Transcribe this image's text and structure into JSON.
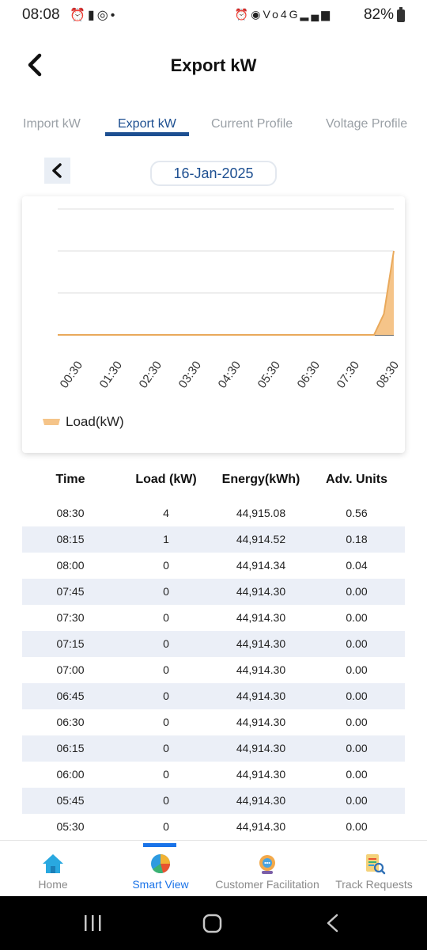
{
  "status_bar": {
    "time": "08:08",
    "battery": "82%",
    "left_icons": [
      "alarm-icon",
      "sim-icon",
      "instagram-icon",
      "dot-icon"
    ],
    "right_icons": [
      "alarm-icon",
      "hotspot-icon",
      "volte-icon",
      "4g-icon",
      "signal-icon"
    ]
  },
  "header": {
    "title": "Export kW"
  },
  "tabs": [
    {
      "label": "Import kW",
      "active": false
    },
    {
      "label": "Export kW",
      "active": true
    },
    {
      "label": "Current Profile",
      "active": false
    },
    {
      "label": "Voltage Profile",
      "active": false
    }
  ],
  "date_selector": {
    "date": "16-Jan-2025"
  },
  "chart_data": {
    "type": "area",
    "x": [
      "00:30",
      "01:30",
      "02:30",
      "03:30",
      "04:30",
      "05:30",
      "06:30",
      "07:30",
      "08:30"
    ],
    "series": [
      {
        "name": "Load(kW)",
        "points": [
          {
            "x": "00:00",
            "y": 0
          },
          {
            "x": "08:00",
            "y": 0
          },
          {
            "x": "08:15",
            "y": 1
          },
          {
            "x": "08:30",
            "y": 4
          }
        ]
      }
    ],
    "yticks": [
      "0",
      "2",
      "4",
      "6"
    ],
    "ylim": [
      0,
      6
    ],
    "grid": true,
    "legend_position": "bottom-left",
    "fill_color": "#f5c489",
    "line_color": "#e9a95b"
  },
  "table": {
    "headers": [
      "Time",
      "Load (kW)",
      "Energy(kWh)",
      "Adv. Units"
    ],
    "rows": [
      [
        "08:30",
        "4",
        "44,915.08",
        "0.56"
      ],
      [
        "08:15",
        "1",
        "44,914.52",
        "0.18"
      ],
      [
        "08:00",
        "0",
        "44,914.34",
        "0.04"
      ],
      [
        "07:45",
        "0",
        "44,914.30",
        "0.00"
      ],
      [
        "07:30",
        "0",
        "44,914.30",
        "0.00"
      ],
      [
        "07:15",
        "0",
        "44,914.30",
        "0.00"
      ],
      [
        "07:00",
        "0",
        "44,914.30",
        "0.00"
      ],
      [
        "06:45",
        "0",
        "44,914.30",
        "0.00"
      ],
      [
        "06:30",
        "0",
        "44,914.30",
        "0.00"
      ],
      [
        "06:15",
        "0",
        "44,914.30",
        "0.00"
      ],
      [
        "06:00",
        "0",
        "44,914.30",
        "0.00"
      ],
      [
        "05:45",
        "0",
        "44,914.30",
        "0.00"
      ],
      [
        "05:30",
        "0",
        "44,914.30",
        "0.00"
      ]
    ]
  },
  "bottom_nav": [
    {
      "label": "Home",
      "icon": "home-icon",
      "active": false
    },
    {
      "label": "Smart View",
      "icon": "pie-chart-icon",
      "active": true
    },
    {
      "label": "Customer Facilitation",
      "icon": "support-agent-icon",
      "active": false
    },
    {
      "label": "Track Requests",
      "icon": "track-requests-icon",
      "active": false
    }
  ],
  "colors": {
    "accent": "#1d4f91",
    "nav_active": "#1a73e8",
    "row_shade": "#ebeff7"
  }
}
